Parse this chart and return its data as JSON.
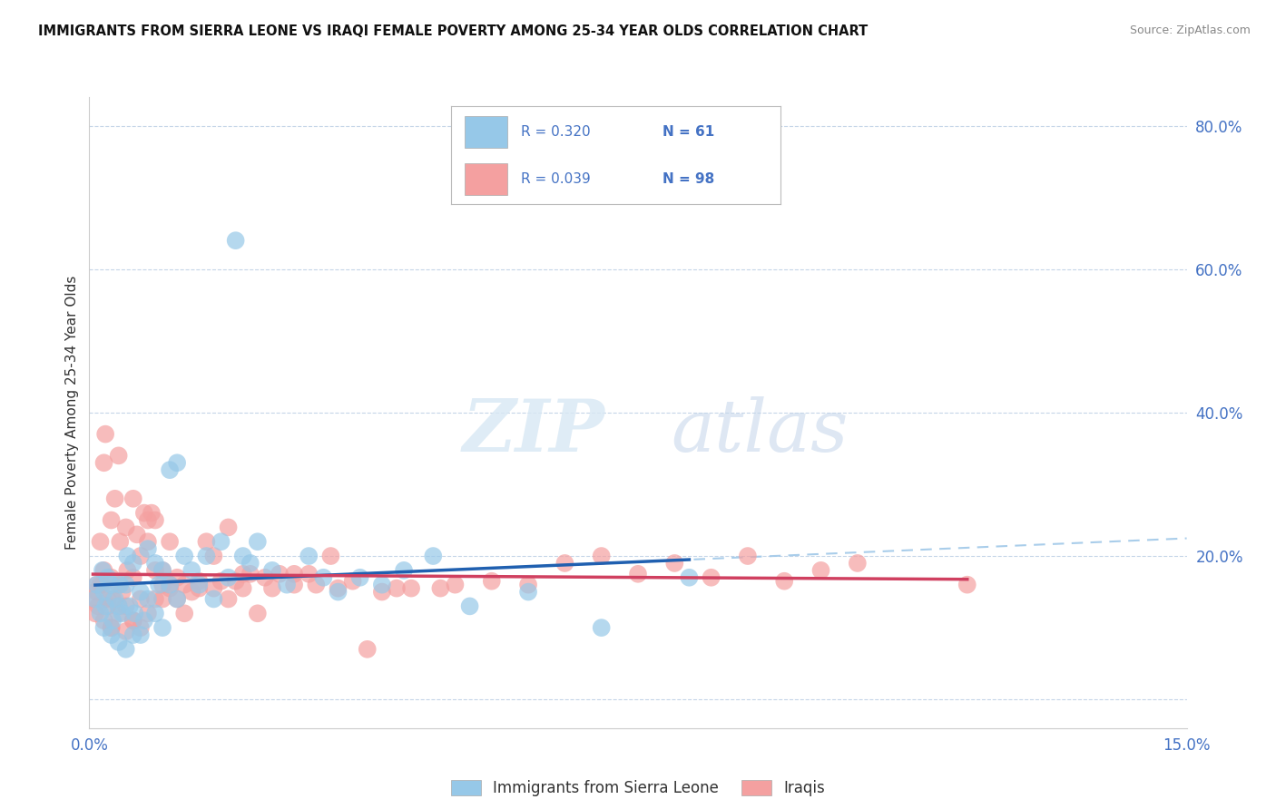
{
  "title": "IMMIGRANTS FROM SIERRA LEONE VS IRAQI FEMALE POVERTY AMONG 25-34 YEAR OLDS CORRELATION CHART",
  "source": "Source: ZipAtlas.com",
  "ylabel": "Female Poverty Among 25-34 Year Olds",
  "right_yticks": [
    0.0,
    0.2,
    0.4,
    0.6,
    0.8
  ],
  "right_yticklabels": [
    "",
    "20.0%",
    "40.0%",
    "60.0%",
    "80.0%"
  ],
  "xmin": 0.0,
  "xmax": 0.15,
  "ymin": -0.04,
  "ymax": 0.84,
  "legend_r1": "R = 0.320",
  "legend_n1": "N = 61",
  "legend_r2": "R = 0.039",
  "legend_n2": "N = 98",
  "legend_label1": "Immigrants from Sierra Leone",
  "legend_label2": "Iraqis",
  "color_blue": "#96c8e8",
  "color_pink": "#f4a0a0",
  "color_blue_dark": "#2060b0",
  "color_pink_dark": "#d04060",
  "color_dashed": "#a0c8e8",
  "watermark_zip": "ZIP",
  "watermark_atlas": "atlas",
  "sl_x": [
    0.0008,
    0.001,
    0.0015,
    0.0018,
    0.002,
    0.002,
    0.0022,
    0.0025,
    0.003,
    0.003,
    0.0032,
    0.0035,
    0.004,
    0.004,
    0.0042,
    0.0045,
    0.005,
    0.005,
    0.0052,
    0.0055,
    0.006,
    0.006,
    0.0062,
    0.007,
    0.007,
    0.0075,
    0.008,
    0.008,
    0.009,
    0.009,
    0.0095,
    0.01,
    0.01,
    0.011,
    0.011,
    0.012,
    0.012,
    0.013,
    0.014,
    0.015,
    0.016,
    0.017,
    0.018,
    0.019,
    0.02,
    0.021,
    0.022,
    0.023,
    0.025,
    0.027,
    0.03,
    0.032,
    0.034,
    0.037,
    0.04,
    0.043,
    0.047,
    0.052,
    0.06,
    0.07,
    0.082
  ],
  "sl_y": [
    0.14,
    0.16,
    0.12,
    0.18,
    0.1,
    0.15,
    0.13,
    0.17,
    0.09,
    0.16,
    0.11,
    0.14,
    0.08,
    0.13,
    0.16,
    0.12,
    0.07,
    0.16,
    0.2,
    0.13,
    0.09,
    0.19,
    0.12,
    0.09,
    0.15,
    0.11,
    0.21,
    0.14,
    0.19,
    0.12,
    0.16,
    0.1,
    0.18,
    0.32,
    0.16,
    0.14,
    0.33,
    0.2,
    0.18,
    0.16,
    0.2,
    0.14,
    0.22,
    0.17,
    0.64,
    0.2,
    0.19,
    0.22,
    0.18,
    0.16,
    0.2,
    0.17,
    0.15,
    0.17,
    0.16,
    0.18,
    0.2,
    0.13,
    0.15,
    0.1,
    0.17
  ],
  "iq_x": [
    0.0005,
    0.001,
    0.001,
    0.0012,
    0.0015,
    0.0018,
    0.002,
    0.002,
    0.0022,
    0.0025,
    0.003,
    0.003,
    0.003,
    0.0032,
    0.0035,
    0.004,
    0.004,
    0.004,
    0.0042,
    0.0045,
    0.005,
    0.005,
    0.0052,
    0.006,
    0.006,
    0.006,
    0.0065,
    0.007,
    0.007,
    0.0075,
    0.008,
    0.008,
    0.0085,
    0.009,
    0.009,
    0.01,
    0.01,
    0.011,
    0.011,
    0.012,
    0.013,
    0.014,
    0.015,
    0.016,
    0.017,
    0.018,
    0.019,
    0.02,
    0.021,
    0.022,
    0.024,
    0.026,
    0.028,
    0.03,
    0.033,
    0.036,
    0.04,
    0.044,
    0.05,
    0.055,
    0.06,
    0.065,
    0.07,
    0.075,
    0.08,
    0.085,
    0.09,
    0.095,
    0.1,
    0.105,
    0.0008,
    0.0015,
    0.002,
    0.0025,
    0.003,
    0.004,
    0.005,
    0.006,
    0.007,
    0.008,
    0.009,
    0.01,
    0.011,
    0.012,
    0.013,
    0.015,
    0.017,
    0.019,
    0.021,
    0.023,
    0.025,
    0.028,
    0.031,
    0.034,
    0.038,
    0.042,
    0.048,
    0.12
  ],
  "iq_y": [
    0.14,
    0.15,
    0.16,
    0.13,
    0.22,
    0.16,
    0.18,
    0.33,
    0.37,
    0.14,
    0.1,
    0.17,
    0.25,
    0.14,
    0.28,
    0.13,
    0.16,
    0.34,
    0.22,
    0.15,
    0.24,
    0.13,
    0.18,
    0.17,
    0.28,
    0.11,
    0.23,
    0.14,
    0.2,
    0.26,
    0.22,
    0.25,
    0.26,
    0.18,
    0.25,
    0.14,
    0.18,
    0.22,
    0.16,
    0.17,
    0.16,
    0.15,
    0.155,
    0.22,
    0.155,
    0.165,
    0.14,
    0.165,
    0.175,
    0.175,
    0.17,
    0.175,
    0.175,
    0.175,
    0.2,
    0.165,
    0.15,
    0.155,
    0.16,
    0.165,
    0.16,
    0.19,
    0.2,
    0.175,
    0.19,
    0.17,
    0.2,
    0.165,
    0.18,
    0.19,
    0.12,
    0.16,
    0.11,
    0.13,
    0.1,
    0.12,
    0.095,
    0.11,
    0.1,
    0.12,
    0.14,
    0.16,
    0.155,
    0.14,
    0.12,
    0.165,
    0.2,
    0.24,
    0.155,
    0.12,
    0.155,
    0.16,
    0.16,
    0.155,
    0.07,
    0.155,
    0.155,
    0.16
  ]
}
